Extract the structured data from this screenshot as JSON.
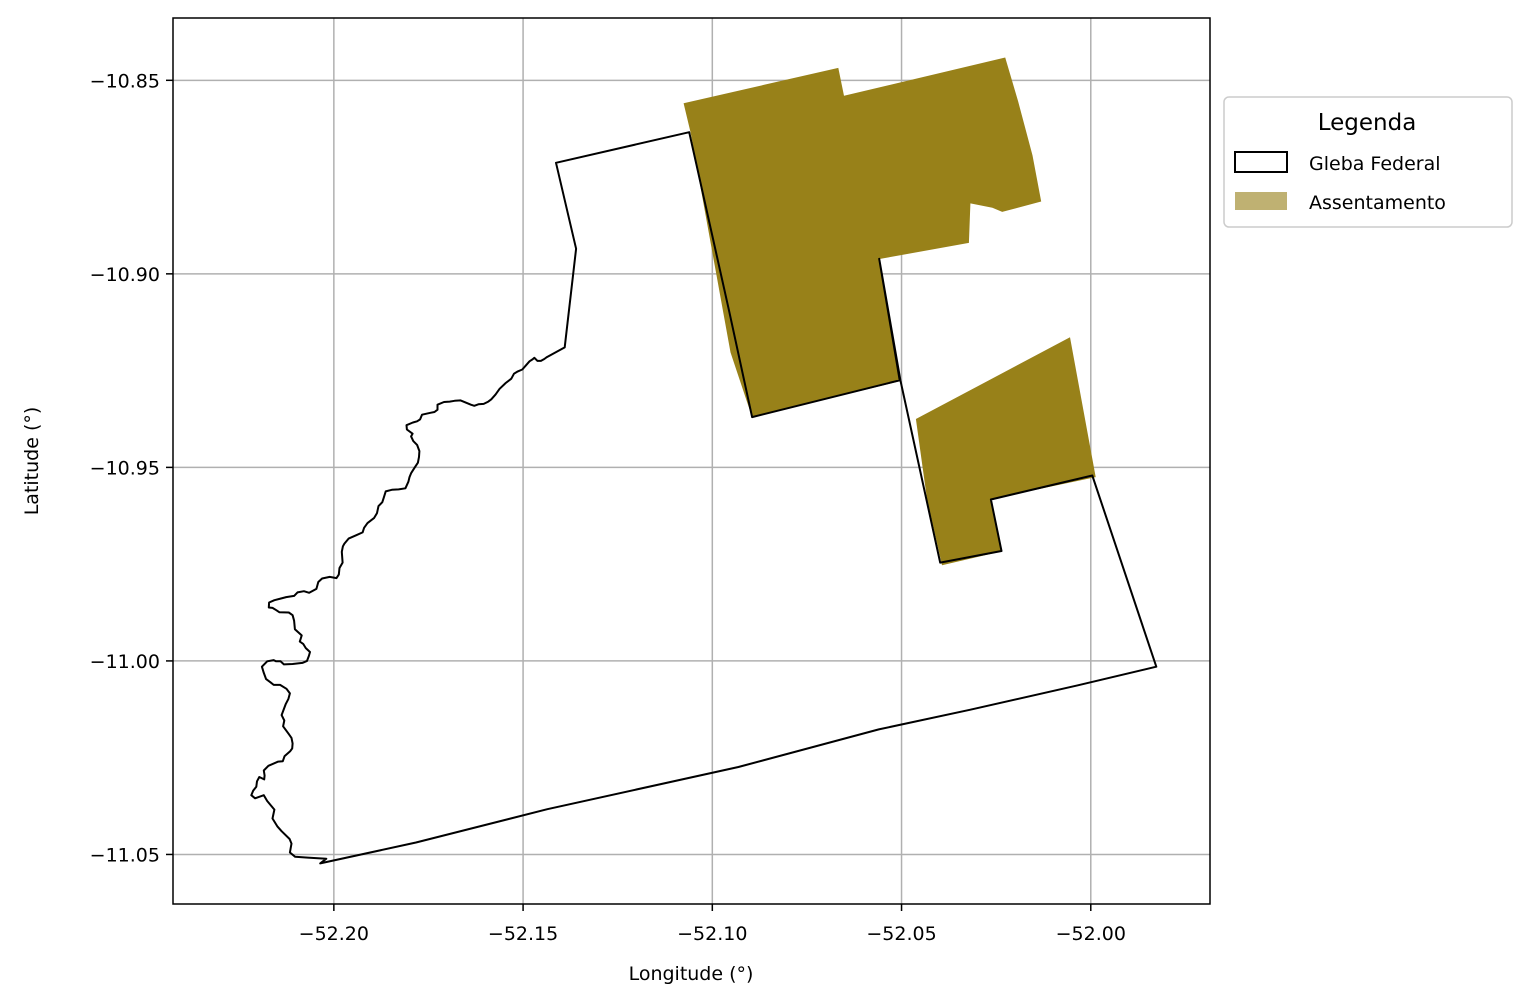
{
  "map": {
    "xlabel": "Longitude (°)",
    "ylabel": "Latitude (°)",
    "xlim": [
      -52.2425,
      -51.9685
    ],
    "ylim": [
      -11.0628,
      -10.8339
    ],
    "xticks": [
      {
        "value": -52.2,
        "label": "−52.20"
      },
      {
        "value": -52.15,
        "label": "−52.15"
      },
      {
        "value": -52.1,
        "label": "−52.10"
      },
      {
        "value": -52.05,
        "label": "−52.05"
      },
      {
        "value": -52.0,
        "label": "−52.00"
      }
    ],
    "yticks": [
      {
        "value": -10.85,
        "label": "−10.85"
      },
      {
        "value": -10.9,
        "label": "−10.90"
      },
      {
        "value": -10.95,
        "label": "−10.95"
      },
      {
        "value": -11.0,
        "label": "−11.00"
      },
      {
        "value": -11.05,
        "label": "−11.05"
      }
    ],
    "grid": true,
    "legend": {
      "title": "Legenda",
      "position": "outside-top-right",
      "entries": [
        {
          "label": "Gleba Federal",
          "style": "outline",
          "color": "#000000"
        },
        {
          "label": "Assentamento",
          "style": "fill",
          "color": "#bfb172"
        }
      ]
    },
    "colors": {
      "assentamento_fill": "#988119",
      "gleba_stroke": "#000000",
      "grid": "#b0b0b0"
    }
  },
  "chart_data": {
    "type": "map",
    "layers": [
      {
        "name": "Assentamento",
        "kind": "polygon",
        "polygons": [
          [
            [
              -52.1076,
              -10.8559
            ],
            [
              -52.0667,
              -10.8468
            ],
            [
              -52.0652,
              -10.854
            ],
            [
              -52.0226,
              -10.8441
            ],
            [
              -52.0192,
              -10.8554
            ],
            [
              -52.0154,
              -10.8694
            ],
            [
              -52.0131,
              -10.8813
            ],
            [
              -52.0234,
              -10.884
            ],
            [
              -52.026,
              -10.8829
            ],
            [
              -52.0318,
              -10.8818
            ],
            [
              -52.0322,
              -10.892
            ],
            [
              -52.056,
              -10.8962
            ],
            [
              -52.0503,
              -10.9277
            ],
            [
              -52.0895,
              -10.937
            ],
            [
              -52.0952,
              -10.9203
            ],
            [
              -52.1057,
              -10.8636
            ]
          ],
          [
            [
              -52.0462,
              -10.9375
            ],
            [
              -52.0055,
              -10.9164
            ],
            [
              -51.9987,
              -10.9525
            ],
            [
              -52.0264,
              -10.9582
            ],
            [
              -52.0236,
              -10.9717
            ],
            [
              -52.0393,
              -10.9753
            ],
            [
              -52.0433,
              -10.958
            ]
          ]
        ]
      },
      {
        "name": "Gleba Federal",
        "kind": "outline",
        "polygon": [
          [
            -52.1413,
            -10.8713
          ],
          [
            -52.1061,
            -10.8634
          ],
          [
            -52.0955,
            -10.9098
          ],
          [
            -52.0895,
            -10.937
          ],
          [
            -52.0505,
            -10.9275
          ],
          [
            -52.0559,
            -10.8961
          ],
          [
            -52.0503,
            -10.9275
          ],
          [
            -52.0398,
            -10.9746
          ],
          [
            -52.0236,
            -10.9716
          ],
          [
            -52.0264,
            -10.9583
          ],
          [
            -51.9996,
            -10.9521
          ],
          [
            -51.9827,
            -11.0015
          ],
          [
            -52.0034,
            -11.0063
          ],
          [
            -52.0318,
            -11.0126
          ],
          [
            -52.056,
            -11.0177
          ],
          [
            -52.0931,
            -11.0274
          ],
          [
            -52.1436,
            -11.0383
          ],
          [
            -52.1783,
            -11.0469
          ],
          [
            -52.2036,
            -11.0523
          ],
          [
            -52.202,
            -11.0511
          ],
          [
            -52.2069,
            -11.0508
          ],
          [
            -52.2102,
            -11.0506
          ],
          [
            -52.2116,
            -11.0495
          ],
          [
            -52.2112,
            -11.0472
          ],
          [
            -52.2117,
            -11.046
          ],
          [
            -52.2138,
            -11.044
          ],
          [
            -52.2149,
            -11.0428
          ],
          [
            -52.2162,
            -11.0407
          ],
          [
            -52.2157,
            -11.0384
          ],
          [
            -52.2176,
            -11.0362
          ],
          [
            -52.2185,
            -11.0347
          ],
          [
            -52.2208,
            -11.0355
          ],
          [
            -52.2218,
            -11.0347
          ],
          [
            -52.2213,
            -11.0335
          ],
          [
            -52.2205,
            -11.0325
          ],
          [
            -52.2203,
            -11.0311
          ],
          [
            -52.2197,
            -11.03
          ],
          [
            -52.2184,
            -11.0306
          ],
          [
            -52.2183,
            -11.0296
          ],
          [
            -52.2185,
            -11.0283
          ],
          [
            -52.2173,
            -11.0271
          ],
          [
            -52.2147,
            -11.026
          ],
          [
            -52.2135,
            -11.0259
          ],
          [
            -52.213,
            -11.0246
          ],
          [
            -52.2115,
            -11.0233
          ],
          [
            -52.211,
            -11.0226
          ],
          [
            -52.2109,
            -11.0213
          ],
          [
            -52.2112,
            -11.0199
          ],
          [
            -52.2119,
            -11.0189
          ],
          [
            -52.2134,
            -11.0169
          ],
          [
            -52.2131,
            -11.0154
          ],
          [
            -52.2138,
            -11.014
          ],
          [
            -52.2127,
            -11.0111
          ],
          [
            -52.212,
            -11.0098
          ],
          [
            -52.2116,
            -11.0084
          ],
          [
            -52.2125,
            -11.0072
          ],
          [
            -52.2142,
            -11.0062
          ],
          [
            -52.2159,
            -11.0062
          ],
          [
            -52.2168,
            -11.0055
          ],
          [
            -52.2179,
            -11.0047
          ],
          [
            -52.2185,
            -11.0031
          ],
          [
            -52.219,
            -11.0015
          ],
          [
            -52.2176,
            -11.0001
          ],
          [
            -52.2159,
            -10.9998
          ],
          [
            -52.2153,
            -11.0001
          ],
          [
            -52.2141,
            -11.0001
          ],
          [
            -52.2132,
            -11.0009
          ],
          [
            -52.2109,
            -11.0008
          ],
          [
            -52.2083,
            -11.0005
          ],
          [
            -52.2071,
            -11.0
          ],
          [
            -52.2066,
            -10.9987
          ],
          [
            -52.2063,
            -10.9977
          ],
          [
            -52.2074,
            -10.9967
          ],
          [
            -52.2081,
            -10.9956
          ],
          [
            -52.209,
            -10.995
          ],
          [
            -52.2085,
            -10.9934
          ],
          [
            -52.2103,
            -10.9918
          ],
          [
            -52.2105,
            -10.9896
          ],
          [
            -52.2109,
            -10.9882
          ],
          [
            -52.2119,
            -10.9875
          ],
          [
            -52.2144,
            -10.9874
          ],
          [
            -52.2152,
            -10.9869
          ],
          [
            -52.2162,
            -10.9863
          ],
          [
            -52.2172,
            -10.9862
          ],
          [
            -52.2171,
            -10.9849
          ],
          [
            -52.2157,
            -10.9843
          ],
          [
            -52.2141,
            -10.9839
          ],
          [
            -52.2126,
            -10.9835
          ],
          [
            -52.2105,
            -10.9832
          ],
          [
            -52.2096,
            -10.9823
          ],
          [
            -52.2079,
            -10.982
          ],
          [
            -52.2065,
            -10.9824
          ],
          [
            -52.2046,
            -10.9814
          ],
          [
            -52.2041,
            -10.9796
          ],
          [
            -52.2031,
            -10.9787
          ],
          [
            -52.2011,
            -10.9783
          ],
          [
            -52.1993,
            -10.9786
          ],
          [
            -52.1987,
            -10.9777
          ],
          [
            -52.1985,
            -10.976
          ],
          [
            -52.1977,
            -10.9746
          ],
          [
            -52.1979,
            -10.9718
          ],
          [
            -52.1976,
            -10.9704
          ],
          [
            -52.1972,
            -10.9697
          ],
          [
            -52.1961,
            -10.9684
          ],
          [
            -52.194,
            -10.9675
          ],
          [
            -52.1924,
            -10.9668
          ],
          [
            -52.192,
            -10.9656
          ],
          [
            -52.1911,
            -10.9644
          ],
          [
            -52.1894,
            -10.9631
          ],
          [
            -52.1886,
            -10.9618
          ],
          [
            -52.1882,
            -10.96
          ],
          [
            -52.1872,
            -10.959
          ],
          [
            -52.1868,
            -10.9578
          ],
          [
            -52.1863,
            -10.9562
          ],
          [
            -52.1847,
            -10.9558
          ],
          [
            -52.1829,
            -10.9557
          ],
          [
            -52.1811,
            -10.9554
          ],
          [
            -52.1803,
            -10.9537
          ],
          [
            -52.18,
            -10.9525
          ],
          [
            -52.1796,
            -10.9515
          ],
          [
            -52.1787,
            -10.9501
          ],
          [
            -52.1778,
            -10.9488
          ],
          [
            -52.1775,
            -10.9473
          ],
          [
            -52.1774,
            -10.9458
          ],
          [
            -52.178,
            -10.9442
          ],
          [
            -52.179,
            -10.9432
          ],
          [
            -52.1796,
            -10.942
          ],
          [
            -52.1792,
            -10.9413
          ],
          [
            -52.1807,
            -10.9402
          ],
          [
            -52.1808,
            -10.9391
          ],
          [
            -52.1791,
            -10.9384
          ],
          [
            -52.178,
            -10.9381
          ],
          [
            -52.1772,
            -10.9376
          ],
          [
            -52.1767,
            -10.9364
          ],
          [
            -52.1745,
            -10.9359
          ],
          [
            -52.1734,
            -10.9357
          ],
          [
            -52.1726,
            -10.9351
          ],
          [
            -52.1726,
            -10.9338
          ],
          [
            -52.1709,
            -10.9331
          ],
          [
            -52.1694,
            -10.933
          ],
          [
            -52.1681,
            -10.9328
          ],
          [
            -52.1665,
            -10.9327
          ],
          [
            -52.1638,
            -10.9338
          ],
          [
            -52.1629,
            -10.9341
          ],
          [
            -52.1618,
            -10.9337
          ],
          [
            -52.1604,
            -10.9336
          ],
          [
            -52.1592,
            -10.933
          ],
          [
            -52.1584,
            -10.9324
          ],
          [
            -52.1573,
            -10.9312
          ],
          [
            -52.1562,
            -10.9297
          ],
          [
            -52.1546,
            -10.9282
          ],
          [
            -52.1531,
            -10.9271
          ],
          [
            -52.1524,
            -10.9258
          ],
          [
            -52.1514,
            -10.9252
          ],
          [
            -52.1502,
            -10.9247
          ],
          [
            -52.1492,
            -10.9236
          ],
          [
            -52.1483,
            -10.9226
          ],
          [
            -52.1475,
            -10.9221
          ],
          [
            -52.147,
            -10.9217
          ],
          [
            -52.1462,
            -10.9225
          ],
          [
            -52.1453,
            -10.9225
          ],
          [
            -52.1444,
            -10.922
          ],
          [
            -52.1437,
            -10.9215
          ],
          [
            -52.139,
            -10.919
          ],
          [
            -52.136,
            -10.8935
          ]
        ]
      }
    ]
  }
}
